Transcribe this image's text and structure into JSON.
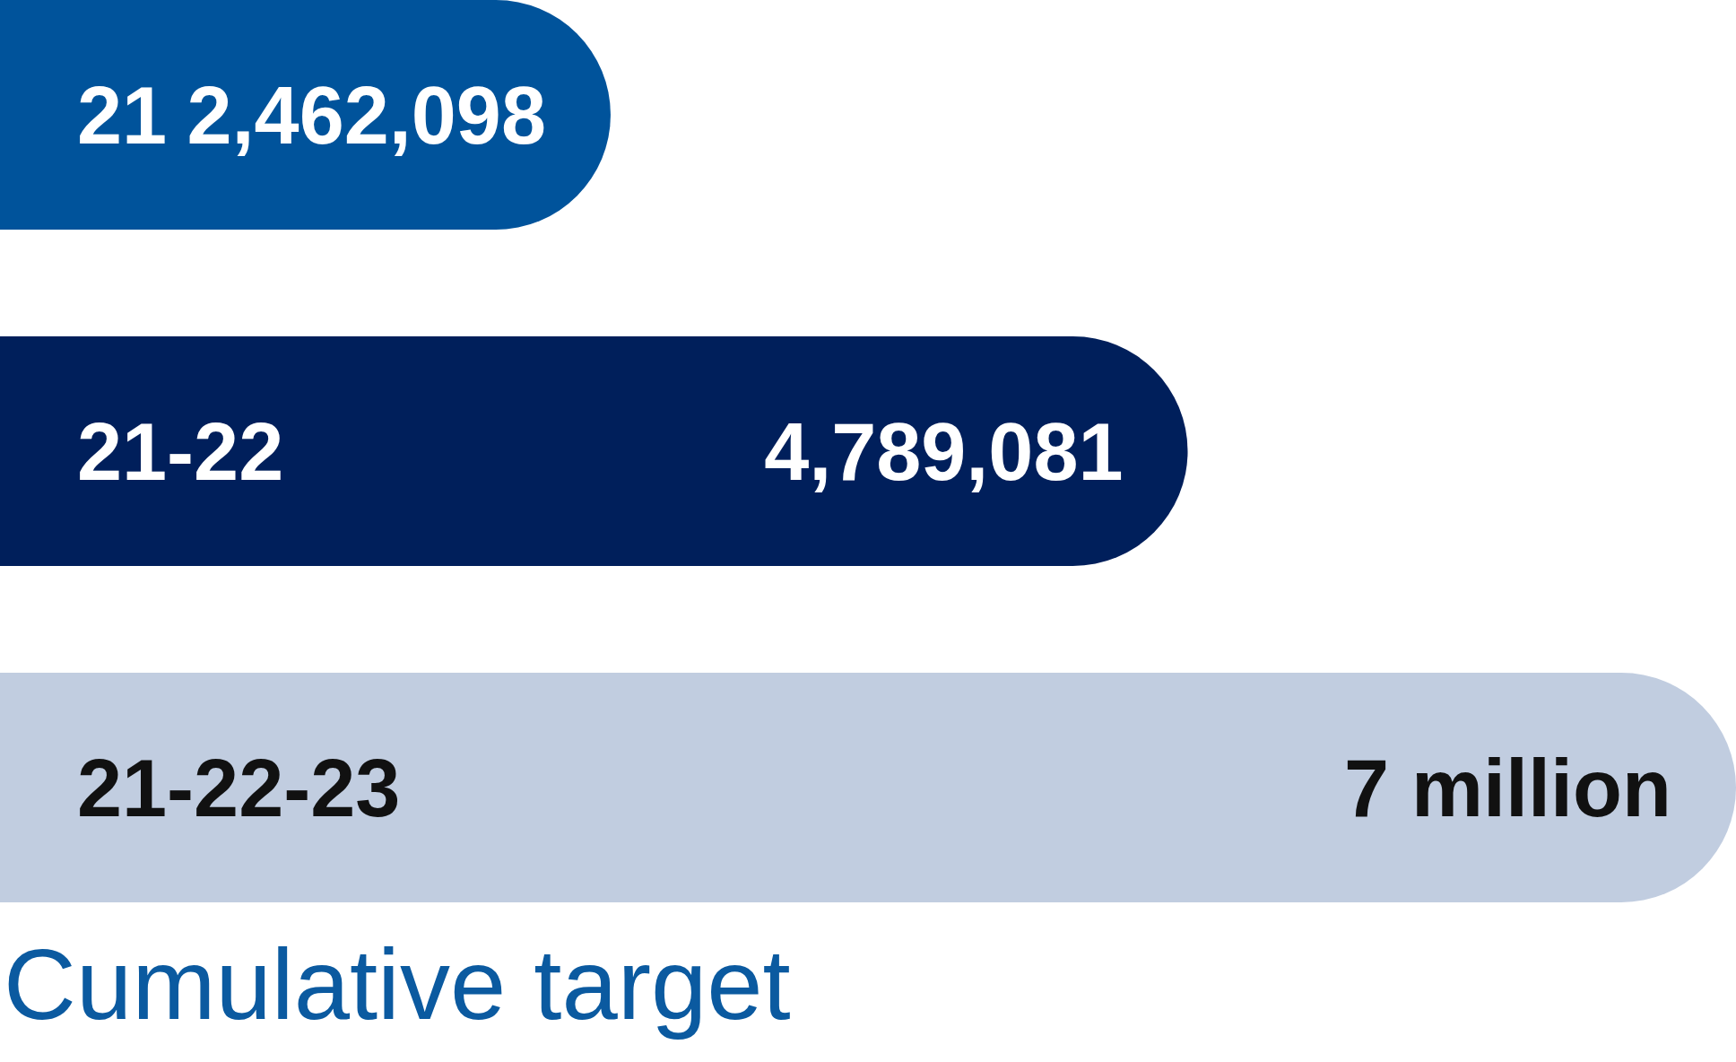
{
  "chart_data": {
    "type": "bar",
    "orientation": "horizontal",
    "categories": [
      "21",
      "21-22",
      "21-22-23"
    ],
    "values": [
      2462098,
      4789081,
      7000000
    ],
    "colors": [
      "#00539b",
      "#001f5b",
      "#c1cde0"
    ],
    "value_labels": [
      "2,462,098",
      "4,789,081",
      "7 million"
    ],
    "tick_labels": "y",
    "annotations": [
      "Cumulative target"
    ]
  }
}
